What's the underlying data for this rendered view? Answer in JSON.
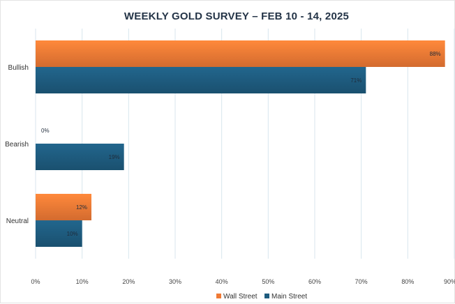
{
  "chart_data": {
    "type": "bar",
    "orientation": "horizontal",
    "title": "WEEKLY GOLD SURVEY – FEB 10 - 14, 2025",
    "categories": [
      "Bullish",
      "Bearish",
      "Neutral"
    ],
    "series": [
      {
        "name": "Wall Street",
        "values": [
          88,
          0,
          12
        ],
        "labels": [
          "88%",
          "0%",
          "12%"
        ],
        "color": "#f07a35"
      },
      {
        "name": "Main Street",
        "values": [
          71,
          19,
          10
        ],
        "labels": [
          "71%",
          "19%",
          "10%"
        ],
        "color": "#1e5b7e"
      }
    ],
    "xlim": [
      0,
      90
    ],
    "xticks": [
      0,
      10,
      20,
      30,
      40,
      50,
      60,
      70,
      80,
      90
    ],
    "xtick_labels": [
      "0%",
      "10%",
      "20%",
      "30%",
      "40%",
      "50%",
      "60%",
      "70%",
      "80%",
      "90%"
    ],
    "grid": true,
    "legend_position": "bottom"
  }
}
